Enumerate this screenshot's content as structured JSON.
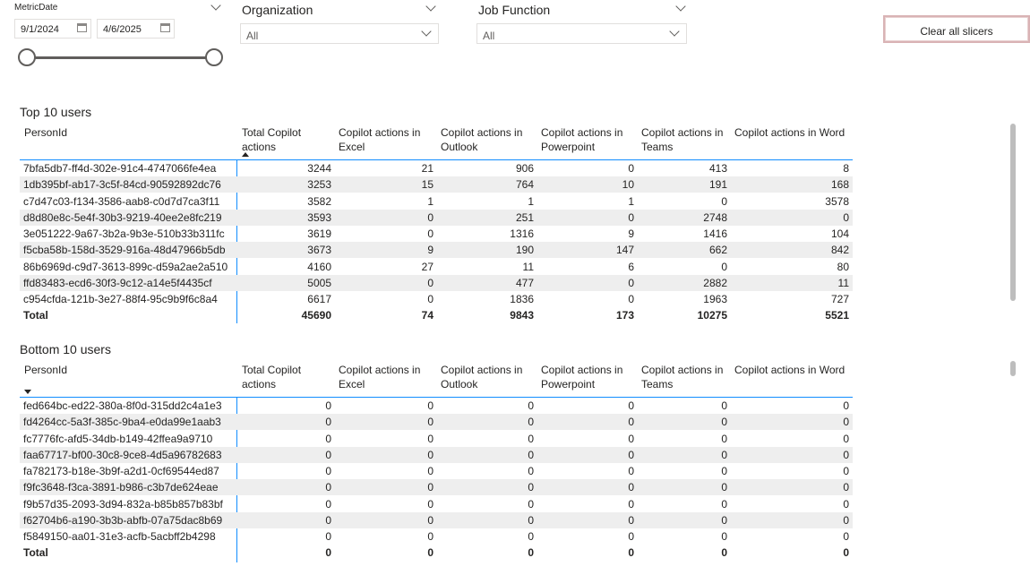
{
  "slicers": {
    "metric_date": {
      "title": "MetricDate",
      "start": "9/1/2024",
      "end": "4/6/2025",
      "range_fraction": [
        0,
        1
      ]
    },
    "organization": {
      "title": "Organization",
      "value": "All"
    },
    "job_function": {
      "title": "Job Function",
      "value": "All"
    }
  },
  "clear_button": {
    "label": "Clear all slicers"
  },
  "columns": [
    "PersonId",
    "Total Copilot actions",
    "Copilot actions in Excel",
    "Copilot actions in Outlook",
    "Copilot actions in Powerpoint",
    "Copilot actions in Teams",
    "Copilot actions in Word"
  ],
  "top_table": {
    "title": "Top 10 users",
    "sort": "ascending",
    "rows": [
      [
        "7bfa5db7-ff4d-302e-91c4-4747066fe4ea",
        "3244",
        "21",
        "906",
        "0",
        "413",
        "8"
      ],
      [
        "1db395bf-ab17-3c5f-84cd-90592892dc76",
        "3253",
        "15",
        "764",
        "10",
        "191",
        "168"
      ],
      [
        "c7d47c03-f134-3586-aab8-c0d7d7ca3f11",
        "3582",
        "1",
        "1",
        "1",
        "0",
        "3578"
      ],
      [
        "d8d80e8c-5e4f-30b3-9219-40ee2e8fc219",
        "3593",
        "0",
        "251",
        "0",
        "2748",
        "0"
      ],
      [
        "3e051222-9a67-3b2a-9b3e-510b33b311fc",
        "3619",
        "0",
        "1316",
        "9",
        "1416",
        "104"
      ],
      [
        "f5cba58b-158d-3529-916a-48d47966b5db",
        "3673",
        "9",
        "190",
        "147",
        "662",
        "842"
      ],
      [
        "86b6969d-c9d7-3613-899c-d59a2ae2a510",
        "4160",
        "27",
        "11",
        "6",
        "0",
        "80"
      ],
      [
        "ffd83483-ecd6-30f3-9c12-a14e5f4435cf",
        "5005",
        "0",
        "477",
        "0",
        "2882",
        "11"
      ],
      [
        "c954cfda-121b-3e27-88f4-95c9b9f6c8a4",
        "6617",
        "0",
        "1836",
        "0",
        "1963",
        "727"
      ]
    ],
    "total": [
      "Total",
      "45690",
      "74",
      "9843",
      "173",
      "10275",
      "5521"
    ]
  },
  "bottom_table": {
    "title": "Bottom 10 users",
    "sort": "descending",
    "rows": [
      [
        "fed664bc-ed22-380a-8f0d-315dd2c4a1e3",
        "0",
        "0",
        "0",
        "0",
        "0",
        "0"
      ],
      [
        "fd4264cc-5a3f-385c-9ba4-e0da99e1aab3",
        "0",
        "0",
        "0",
        "0",
        "0",
        "0"
      ],
      [
        "fc7776fc-afd5-34db-b149-42ffea9a9710",
        "0",
        "0",
        "0",
        "0",
        "0",
        "0"
      ],
      [
        "faa67717-bf00-30c8-9ce8-4d5a96782683",
        "0",
        "0",
        "0",
        "0",
        "0",
        "0"
      ],
      [
        "fa782173-b18e-3b9f-a2d1-0cf69544ed87",
        "0",
        "0",
        "0",
        "0",
        "0",
        "0"
      ],
      [
        "f9fc3648-f3ca-3891-b986-c3b7de624eae",
        "0",
        "0",
        "0",
        "0",
        "0",
        "0"
      ],
      [
        "f9b57d35-2093-3d94-832a-b85b857b83bf",
        "0",
        "0",
        "0",
        "0",
        "0",
        "0"
      ],
      [
        "f62704b6-a190-3b3b-abfb-07a75dac8b69",
        "0",
        "0",
        "0",
        "0",
        "0",
        "0"
      ],
      [
        "f5849150-aa01-31e3-acfb-5acbff2b4298",
        "0",
        "0",
        "0",
        "0",
        "0",
        "0"
      ]
    ],
    "total": [
      "Total",
      "0",
      "0",
      "0",
      "0",
      "0",
      "0"
    ]
  }
}
